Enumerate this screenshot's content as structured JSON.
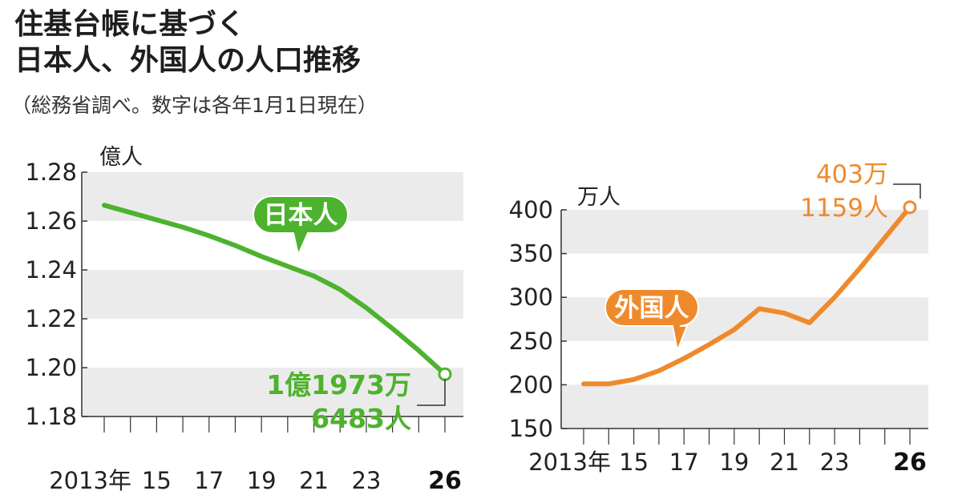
{
  "title": {
    "line1": "住基台帳に基づく",
    "line2": "日本人、外国人の人口推移"
  },
  "subtitle": "（総務省調べ。数字は各年1月1日現在）",
  "colors": {
    "japanese": "#4db22d",
    "foreign": "#ef8a2c",
    "band": "#ebebeb",
    "axis": "#333333"
  },
  "chart_data": [
    {
      "type": "line",
      "ylabel": "億人",
      "ylim": [
        1.18,
        1.28
      ],
      "yticks": [
        "1.28",
        "1.26",
        "1.24",
        "1.22",
        "1.20",
        "1.18"
      ],
      "ytick_values": [
        1.28,
        1.26,
        1.24,
        1.22,
        1.2,
        1.18
      ],
      "xlim": [
        2013,
        2026
      ],
      "xticks": [
        "2013年",
        "15",
        "17",
        "19",
        "21",
        "23",
        "26"
      ],
      "xtick_values": [
        2013,
        2015,
        2017,
        2019,
        2021,
        2023,
        2026
      ],
      "series": [
        {
          "name": "日本人",
          "x": [
            2013,
            2014,
            2015,
            2016,
            2017,
            2018,
            2019,
            2020,
            2021,
            2022,
            2023,
            2024,
            2025,
            2026
          ],
          "values": [
            1.2665,
            1.2635,
            1.2605,
            1.2575,
            1.254,
            1.25,
            1.2455,
            1.2415,
            1.2375,
            1.232,
            1.2245,
            1.216,
            1.207,
            1.1973
          ]
        }
      ],
      "end_label": [
        "1億1973万",
        "6483人"
      ]
    },
    {
      "type": "line",
      "ylabel": "万人",
      "ylim": [
        150,
        400
      ],
      "yticks": [
        "400",
        "350",
        "300",
        "250",
        "200",
        "150"
      ],
      "ytick_values": [
        400,
        350,
        300,
        250,
        200,
        150
      ],
      "xlim": [
        2013,
        2026
      ],
      "xticks": [
        "2013年",
        "15",
        "17",
        "19",
        "21",
        "23",
        "26"
      ],
      "xtick_values": [
        2013,
        2015,
        2017,
        2019,
        2021,
        2023,
        2026
      ],
      "series": [
        {
          "name": "外国人",
          "x": [
            2013,
            2014,
            2015,
            2016,
            2017,
            2018,
            2019,
            2020,
            2021,
            2022,
            2023,
            2024,
            2025,
            2026
          ],
          "values": [
            201,
            201,
            206,
            216,
            230,
            246,
            263,
            287,
            282,
            271,
            300,
            333,
            368,
            403
          ]
        }
      ],
      "end_label": [
        "403万",
        "1159人"
      ]
    }
  ]
}
